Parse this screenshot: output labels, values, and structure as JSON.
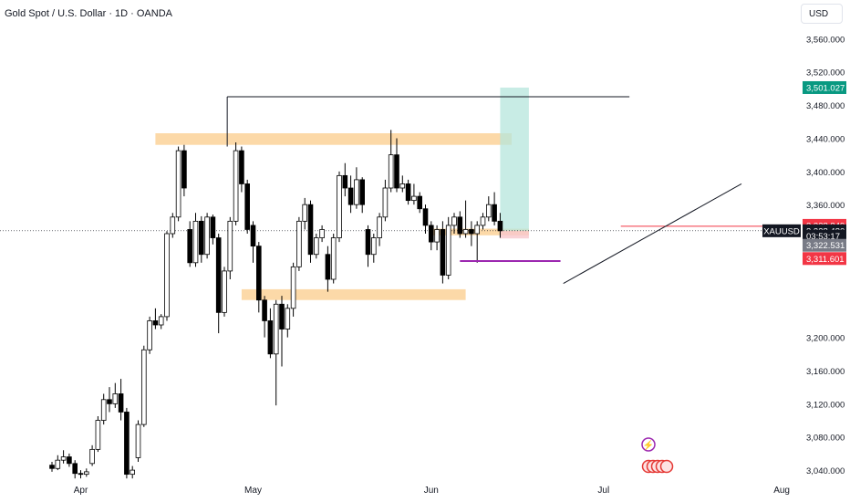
{
  "header": {
    "title": "Gold Spot / U.S. Dollar · 1D · OANDA",
    "currency": "USD"
  },
  "chart_data": {
    "type": "candlestick",
    "symbol": "XAUUSD",
    "y_range": [
      3028,
      3578
    ],
    "price_ticks": [
      "3,560.000",
      "3,520.000",
      "3,480.000",
      "3,440.000",
      "3,400.000",
      "3,360.000",
      "3,200.000",
      "3,160.000",
      "3,120.000",
      "3,080.000",
      "3,040.000"
    ],
    "month_labels": [
      {
        "label": "Apr",
        "day": 5
      },
      {
        "label": "May",
        "day": 35
      },
      {
        "label": "Jun",
        "day": 66
      },
      {
        "label": "Jul",
        "day": 96
      },
      {
        "label": "Aug",
        "day": 127
      }
    ],
    "candles": [
      [
        0,
        3046,
        3042,
        3050,
        3038
      ],
      [
        1,
        3042,
        3052,
        3058,
        3040
      ],
      [
        2,
        3052,
        3056,
        3064,
        3048
      ],
      [
        3,
        3056,
        3048,
        3060,
        3044
      ],
      [
        4,
        3048,
        3036,
        3052,
        3030
      ],
      [
        5,
        3036,
        3035,
        3040,
        3030
      ],
      [
        6,
        3035,
        3038,
        3042,
        3032
      ],
      [
        7,
        3048,
        3065,
        3070,
        3045
      ],
      [
        8,
        3065,
        3100,
        3105,
        3062
      ],
      [
        9,
        3100,
        3125,
        3132,
        3095
      ],
      [
        10,
        3125,
        3120,
        3140,
        3110
      ],
      [
        11,
        3120,
        3132,
        3145,
        3115
      ],
      [
        12,
        3132,
        3110,
        3150,
        3100
      ],
      [
        13,
        3110,
        3035,
        3115,
        3030
      ],
      [
        14,
        3035,
        3040,
        3045,
        3030
      ],
      [
        15,
        3055,
        3095,
        3100,
        3050
      ],
      [
        16,
        3095,
        3185,
        3190,
        3092
      ],
      [
        17,
        3185,
        3220,
        3225,
        3180
      ],
      [
        18,
        3220,
        3215,
        3235,
        3210
      ],
      [
        19,
        3215,
        3225,
        3228,
        3210
      ],
      [
        20,
        3225,
        3325,
        3328,
        3220
      ],
      [
        21,
        3325,
        3345,
        3350,
        3320
      ],
      [
        22,
        3345,
        3425,
        3430,
        3340
      ],
      [
        23,
        3425,
        3380,
        3432,
        3370
      ],
      [
        24,
        3330,
        3290,
        3340,
        3285
      ],
      [
        25,
        3290,
        3340,
        3350,
        3285
      ],
      [
        26,
        3340,
        3300,
        3346,
        3290
      ],
      [
        27,
        3300,
        3345,
        3350,
        3295
      ],
      [
        28,
        3345,
        3320,
        3348,
        3312
      ],
      [
        29,
        3320,
        3230,
        3325,
        3205
      ],
      [
        30,
        3230,
        3280,
        3285,
        3225
      ],
      [
        31,
        3280,
        3340,
        3345,
        3270
      ],
      [
        32,
        3340,
        3425,
        3435,
        3335
      ],
      [
        33,
        3425,
        3385,
        3430,
        3375
      ],
      [
        34,
        3385,
        3330,
        3390,
        3325
      ],
      [
        35,
        3335,
        3310,
        3340,
        3290
      ],
      [
        36,
        3310,
        3245,
        3315,
        3230
      ],
      [
        37,
        3245,
        3220,
        3250,
        3200
      ],
      [
        38,
        3220,
        3180,
        3235,
        3175
      ],
      [
        39,
        3180,
        3240,
        3245,
        3118
      ],
      [
        40,
        3240,
        3210,
        3250,
        3165
      ],
      [
        41,
        3210,
        3235,
        3240,
        3200
      ],
      [
        42,
        3235,
        3285,
        3290,
        3225
      ],
      [
        43,
        3285,
        3340,
        3345,
        3280
      ],
      [
        44,
        3340,
        3360,
        3368,
        3330
      ],
      [
        45,
        3360,
        3300,
        3365,
        3290
      ],
      [
        46,
        3300,
        3320,
        3325,
        3295
      ],
      [
        47,
        3320,
        3330,
        3335,
        3315
      ],
      [
        48,
        3300,
        3270,
        3310,
        3255
      ],
      [
        49,
        3270,
        3320,
        3325,
        3265
      ],
      [
        50,
        3320,
        3395,
        3400,
        3315
      ],
      [
        51,
        3395,
        3380,
        3410,
        3370
      ],
      [
        52,
        3380,
        3360,
        3395,
        3350
      ],
      [
        53,
        3360,
        3390,
        3405,
        3355
      ],
      [
        54,
        3390,
        3360,
        3393,
        3350
      ],
      [
        55,
        3330,
        3300,
        3335,
        3285
      ],
      [
        56,
        3300,
        3320,
        3325,
        3290
      ],
      [
        57,
        3320,
        3345,
        3350,
        3310
      ],
      [
        58,
        3345,
        3380,
        3390,
        3340
      ],
      [
        59,
        3380,
        3420,
        3450,
        3375
      ],
      [
        60,
        3420,
        3380,
        3440,
        3375
      ],
      [
        61,
        3380,
        3385,
        3395,
        3375
      ],
      [
        62,
        3385,
        3365,
        3390,
        3360
      ],
      [
        63,
        3365,
        3370,
        3385,
        3360
      ],
      [
        64,
        3370,
        3355,
        3375,
        3350
      ],
      [
        65,
        3355,
        3335,
        3360,
        3325
      ],
      [
        66,
        3335,
        3315,
        3340,
        3305
      ],
      [
        67,
        3315,
        3330,
        3335,
        3305
      ],
      [
        68,
        3330,
        3275,
        3340,
        3265
      ],
      [
        69,
        3275,
        3335,
        3345,
        3270
      ],
      [
        70,
        3335,
        3345,
        3350,
        3325
      ],
      [
        71,
        3345,
        3325,
        3352,
        3320
      ],
      [
        72,
        3325,
        3330,
        3365,
        3320
      ],
      [
        73,
        3330,
        3325,
        3340,
        3310
      ],
      [
        74,
        3325,
        3335,
        3340,
        3290
      ],
      [
        75,
        3335,
        3345,
        3350,
        3330
      ],
      [
        76,
        3345,
        3360,
        3370,
        3340
      ],
      [
        77,
        3360,
        3340,
        3375,
        3335
      ],
      [
        78,
        3340,
        3328.48,
        3350,
        3320
      ]
    ],
    "axis_labels": [
      {
        "text": "3,501.027",
        "bg": "#089981",
        "price": 3501.027
      },
      {
        "text": "3,328.849",
        "bg": "#f23645",
        "price": 3335
      },
      {
        "text": "XAUUSD",
        "bg": "#131722",
        "price": 3328.48,
        "left": true
      },
      {
        "text": "3,328.480",
        "bg": "#131722",
        "price": 3328.48
      },
      {
        "text": "03:53:17",
        "bg": "#131722",
        "price": 3322.0
      },
      {
        "text": "3,322.531",
        "bg": "#787b86",
        "price": 3311.0
      },
      {
        "text": "3,311.601",
        "bg": "#f23645",
        "price": 3295
      }
    ],
    "zones": [
      {
        "name": "resistance-zone",
        "day0": 18,
        "day1": 80,
        "p0": 3432,
        "p1": 3446
      },
      {
        "name": "support-zone",
        "day0": 33,
        "day1": 72,
        "p0": 3245,
        "p1": 3258
      },
      {
        "name": "small-zone",
        "day0": 66,
        "day1": 83,
        "p0": 3323,
        "p1": 3331
      }
    ],
    "long_position": {
      "day0": 78,
      "day1": 83,
      "entry": 3328.48,
      "target": 3501.027,
      "stop": 3322.531
    },
    "colors": {
      "up": "#ffffff",
      "down": "#000000",
      "outline": "#000000",
      "zone": "#fcd9a8",
      "target": "#b6e5dc",
      "stop": "#f7c7cc",
      "purple": "#9c27b0",
      "red_line": "#f23645"
    }
  }
}
